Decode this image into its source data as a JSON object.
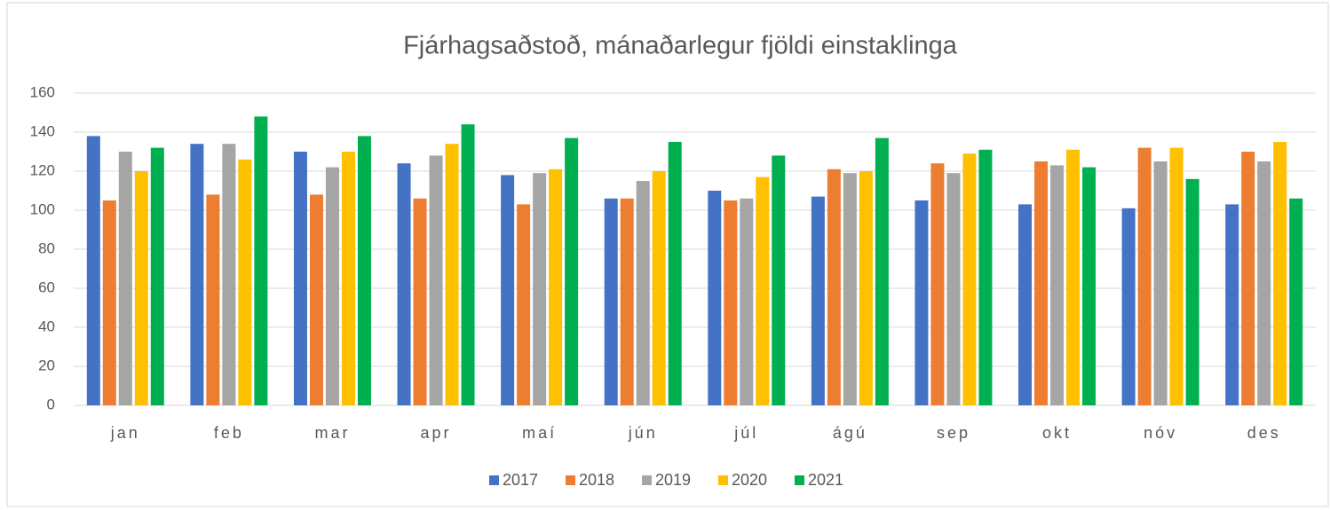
{
  "chart_data": {
    "type": "bar",
    "title": "Fjárhagsaðstoð, mánaðarlegur fjöldi einstaklinga",
    "categories": [
      "jan",
      "feb",
      "mar",
      "apr",
      "maí",
      "jún",
      "júl",
      "ágú",
      "sep",
      "okt",
      "nóv",
      "des"
    ],
    "series": [
      {
        "name": "2017",
        "color": "#4472c4",
        "values": [
          138,
          134,
          130,
          124,
          118,
          106,
          110,
          107,
          105,
          103,
          101,
          103
        ]
      },
      {
        "name": "2018",
        "color": "#ed7d31",
        "values": [
          105,
          108,
          108,
          106,
          103,
          106,
          105,
          121,
          124,
          125,
          132,
          130
        ]
      },
      {
        "name": "2019",
        "color": "#a5a5a5",
        "values": [
          130,
          134,
          122,
          128,
          119,
          115,
          106,
          119,
          119,
          123,
          125,
          125
        ]
      },
      {
        "name": "2020",
        "color": "#ffc000",
        "values": [
          120,
          126,
          130,
          134,
          121,
          120,
          117,
          120,
          129,
          131,
          132,
          135
        ]
      },
      {
        "name": "2021",
        "color": "#00b050",
        "values": [
          132,
          148,
          138,
          144,
          137,
          135,
          128,
          137,
          131,
          122,
          116,
          106
        ]
      }
    ],
    "ylim": [
      0,
      160
    ],
    "yticks": [
      0,
      20,
      40,
      60,
      80,
      100,
      120,
      140,
      160
    ],
    "grid": true,
    "legend": "bottom"
  }
}
